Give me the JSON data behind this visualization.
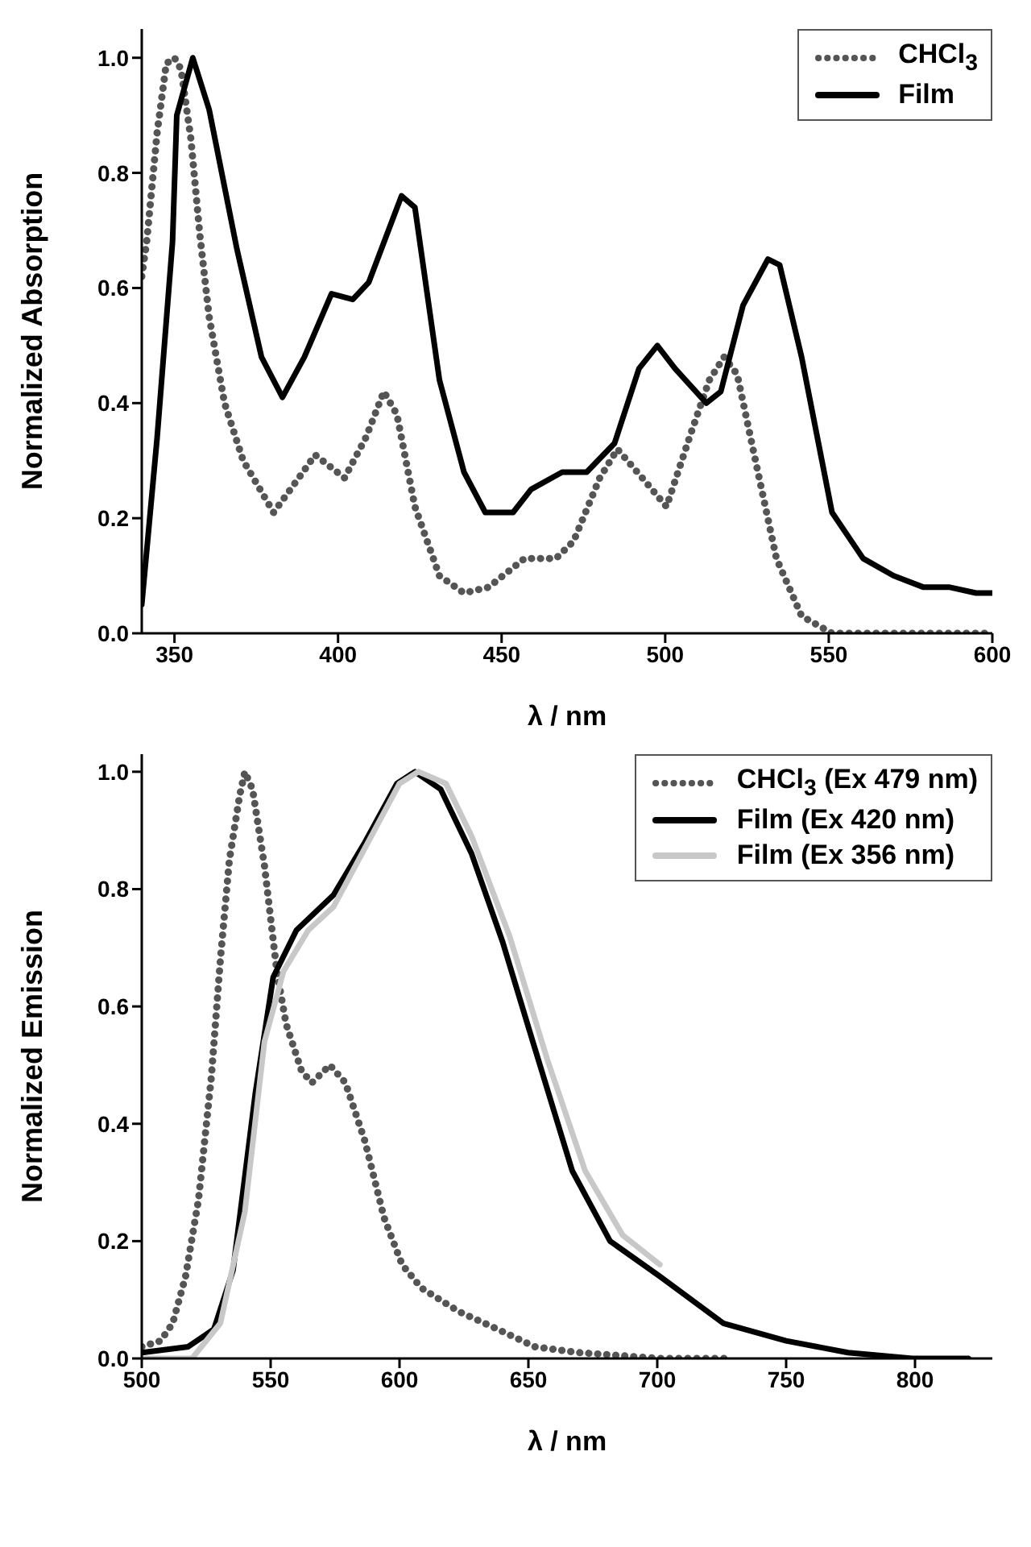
{
  "chart_data": [
    {
      "type": "line",
      "xlabel": "λ / nm",
      "ylabel": "Normalized Absorption",
      "xlim": [
        340,
        600
      ],
      "xticks": [
        350,
        400,
        450,
        500,
        550,
        600
      ],
      "ylim": [
        0,
        1.05
      ],
      "yticks": [
        {
          "value": 0,
          "label": "0.0"
        },
        {
          "value": 0.2,
          "label": "0.2"
        },
        {
          "value": 0.4,
          "label": "0.4"
        },
        {
          "value": 0.6,
          "label": "0.6"
        },
        {
          "value": 0.8,
          "label": "0.8"
        },
        {
          "value": 1,
          "label": "1.0"
        }
      ],
      "legend": "top right",
      "marker": "none",
      "series": [
        {
          "name": "CHCl$_{3}$",
          "color": "#555555",
          "line_style": "dotted",
          "x": [
            340,
            341.5,
            344.7,
            347.5,
            350,
            352,
            355,
            357.8,
            360.6,
            365.3,
            371,
            380.3,
            388,
            393,
            402,
            408.5,
            414,
            418,
            423.5,
            431,
            438.5,
            446,
            457,
            466.6,
            472,
            480,
            485.4,
            493,
            500.4,
            508,
            513.5,
            518,
            522,
            527.6,
            534,
            541.7,
            551,
            569.8,
            600
          ],
          "values": [
            0.62,
            0.68,
            0.87,
            0.99,
            1.0,
            0.98,
            0.86,
            0.69,
            0.55,
            0.4,
            0.3,
            0.21,
            0.27,
            0.31,
            0.27,
            0.34,
            0.42,
            0.38,
            0.22,
            0.1,
            0.07,
            0.08,
            0.13,
            0.13,
            0.16,
            0.27,
            0.32,
            0.27,
            0.22,
            0.35,
            0.44,
            0.48,
            0.45,
            0.3,
            0.13,
            0.03,
            0.0,
            0.0,
            0.0
          ]
        },
        {
          "name": "Film",
          "color": "#000000",
          "line_style": "solid",
          "x": [
            340,
            344.7,
            349.4,
            350.7,
            355.6,
            360.6,
            369,
            376.6,
            383,
            389.7,
            398,
            404.5,
            409.4,
            419.4,
            423.5,
            431,
            438.5,
            445,
            453.5,
            459,
            468.5,
            476,
            484.5,
            492,
            497.6,
            503,
            512.6,
            517,
            523.8,
            531.4,
            535,
            541.7,
            551,
            560.5,
            569.8,
            579,
            587,
            595,
            600
          ],
          "values": [
            0.05,
            0.34,
            0.68,
            0.9,
            1.0,
            0.91,
            0.67,
            0.48,
            0.41,
            0.48,
            0.59,
            0.58,
            0.61,
            0.76,
            0.74,
            0.44,
            0.28,
            0.21,
            0.21,
            0.25,
            0.28,
            0.28,
            0.33,
            0.46,
            0.5,
            0.46,
            0.4,
            0.42,
            0.57,
            0.65,
            0.64,
            0.48,
            0.21,
            0.13,
            0.1,
            0.08,
            0.08,
            0.07,
            0.07
          ]
        }
      ]
    },
    {
      "type": "line",
      "xlabel": "λ / nm",
      "ylabel": "Normalized Emission",
      "xlim": [
        500,
        830
      ],
      "xticks": [
        500,
        550,
        600,
        650,
        700,
        750,
        800
      ],
      "ylim": [
        0,
        1.03
      ],
      "yticks": [
        {
          "value": 0,
          "label": "0.0"
        },
        {
          "value": 0.2,
          "label": "0.2"
        },
        {
          "value": 0.4,
          "label": "0.4"
        },
        {
          "value": 0.6,
          "label": "0.6"
        },
        {
          "value": 0.8,
          "label": "0.8"
        },
        {
          "value": 1,
          "label": "1.0"
        }
      ],
      "legend": "top right",
      "marker": "none",
      "series": [
        {
          "name": "CHCl$_{3}$ (Ex 479 nm)",
          "color": "#555555",
          "line_style": "dotted",
          "x": [
            500,
            507.3,
            512,
            517,
            522,
            527,
            530.5,
            534,
            538,
            540,
            543,
            547.6,
            552.4,
            556,
            562,
            566,
            573,
            579,
            586.6,
            594,
            601,
            608.5,
            623,
            638,
            652.4,
            669.5,
            701,
            729
          ],
          "values": [
            0.02,
            0.03,
            0.06,
            0.14,
            0.27,
            0.48,
            0.68,
            0.85,
            0.96,
            1.0,
            0.97,
            0.84,
            0.66,
            0.57,
            0.49,
            0.47,
            0.5,
            0.47,
            0.37,
            0.24,
            0.16,
            0.12,
            0.08,
            0.05,
            0.02,
            0.01,
            0.0,
            0.0
          ]
        },
        {
          "name": "Film (Ex 420 nm)",
          "color": "#000000",
          "line_style": "solid",
          "x": [
            500,
            518,
            528,
            535.4,
            544,
            551,
            560,
            574.4,
            586.6,
            599,
            606,
            616,
            628,
            640,
            652.4,
            667,
            681.7,
            701,
            725.6,
            750,
            774,
            799,
            820.7
          ],
          "values": [
            0.01,
            0.02,
            0.05,
            0.15,
            0.45,
            0.65,
            0.73,
            0.79,
            0.88,
            0.98,
            1.0,
            0.97,
            0.86,
            0.71,
            0.53,
            0.32,
            0.2,
            0.14,
            0.06,
            0.03,
            0.01,
            0.0,
            0.0
          ]
        },
        {
          "name": "Film (Ex 356 nm)",
          "color": "#c8c8c8",
          "line_style": "solid",
          "x": [
            500,
            519.5,
            530.5,
            540,
            547.6,
            555,
            564.6,
            574.4,
            586.6,
            600,
            607.3,
            618,
            628,
            642.7,
            657.3,
            672,
            686.6,
            701
          ],
          "values": [
            0.0,
            0.0,
            0.06,
            0.25,
            0.54,
            0.66,
            0.73,
            0.77,
            0.87,
            0.98,
            1.0,
            0.98,
            0.89,
            0.72,
            0.51,
            0.32,
            0.21,
            0.16
          ]
        }
      ]
    }
  ]
}
